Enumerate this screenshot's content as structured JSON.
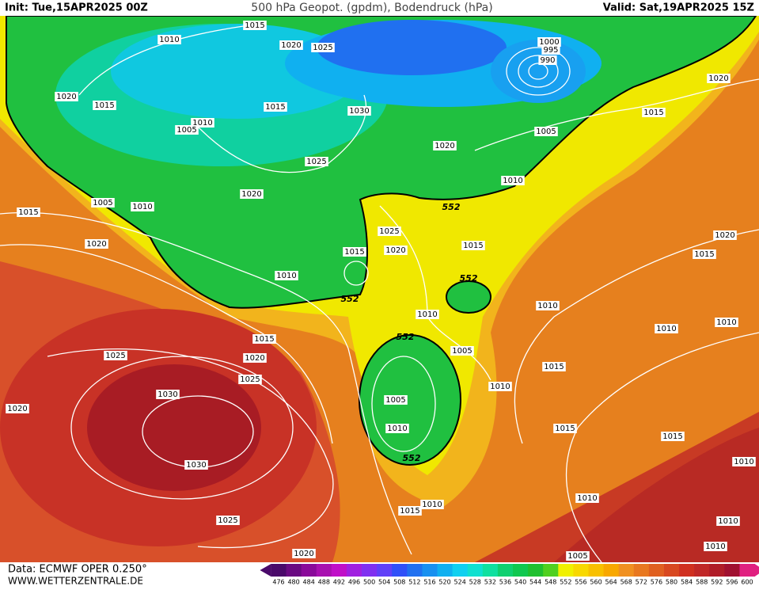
{
  "header": {
    "init": "Init: Tue,15APR2025 00Z",
    "title": "500 hPa Geopot. (gpdm), Bodendruck (hPa)",
    "valid": "Valid: Sat,19APR2025 15Z"
  },
  "footer": {
    "source": "Data: ECMWF OPER 0.250°",
    "website": "WWW.WETTERZENTRALE.DE"
  },
  "colorbar": {
    "ticks": [
      476,
      480,
      484,
      488,
      492,
      496,
      500,
      504,
      508,
      512,
      516,
      520,
      524,
      528,
      532,
      536,
      540,
      544,
      548,
      552,
      556,
      560,
      564,
      568,
      572,
      576,
      580,
      584,
      588,
      592,
      596,
      600
    ],
    "colors": [
      "#4a0a6a",
      "#6a0a82",
      "#8a0a9a",
      "#a810b0",
      "#c010c8",
      "#a020e0",
      "#8030f0",
      "#6040f8",
      "#3050f8",
      "#2070f0",
      "#1890f0",
      "#10b0f0",
      "#10d0f0",
      "#10e0d0",
      "#10e0a0",
      "#10d070",
      "#10c850",
      "#20c030",
      "#50d020",
      "#f0f000",
      "#f8d800",
      "#f8c000",
      "#f8a800",
      "#f09020",
      "#e87820",
      "#e06020",
      "#d84820",
      "#d03020",
      "#c02828",
      "#b01c28",
      "#a01030",
      "#e02080"
    ]
  },
  "map": {
    "isobar_labels": [
      "1015",
      "1010",
      "1020",
      "1025",
      "1000",
      "995",
      "990",
      "1020",
      "1020",
      "1015",
      "1015",
      "1030",
      "1010",
      "1005",
      "1015",
      "1005",
      "1020",
      "1025",
      "1010",
      "1020",
      "1005",
      "1010",
      "1015",
      "1025",
      "1020",
      "1020",
      "1015",
      "1015",
      "1020",
      "1015",
      "1010",
      "1010",
      "1010",
      "1010",
      "1010",
      "1015",
      "1005",
      "1025",
      "1020",
      "1015",
      "1025",
      "1010",
      "1030",
      "1005",
      "1020",
      "1010",
      "1015",
      "1015",
      "1030",
      "1010",
      "1010",
      "1010",
      "1015",
      "1025",
      "1010",
      "1010",
      "1020",
      "1005"
    ],
    "geopot_labels": [
      "552",
      "552",
      "552",
      "552",
      "552"
    ]
  }
}
